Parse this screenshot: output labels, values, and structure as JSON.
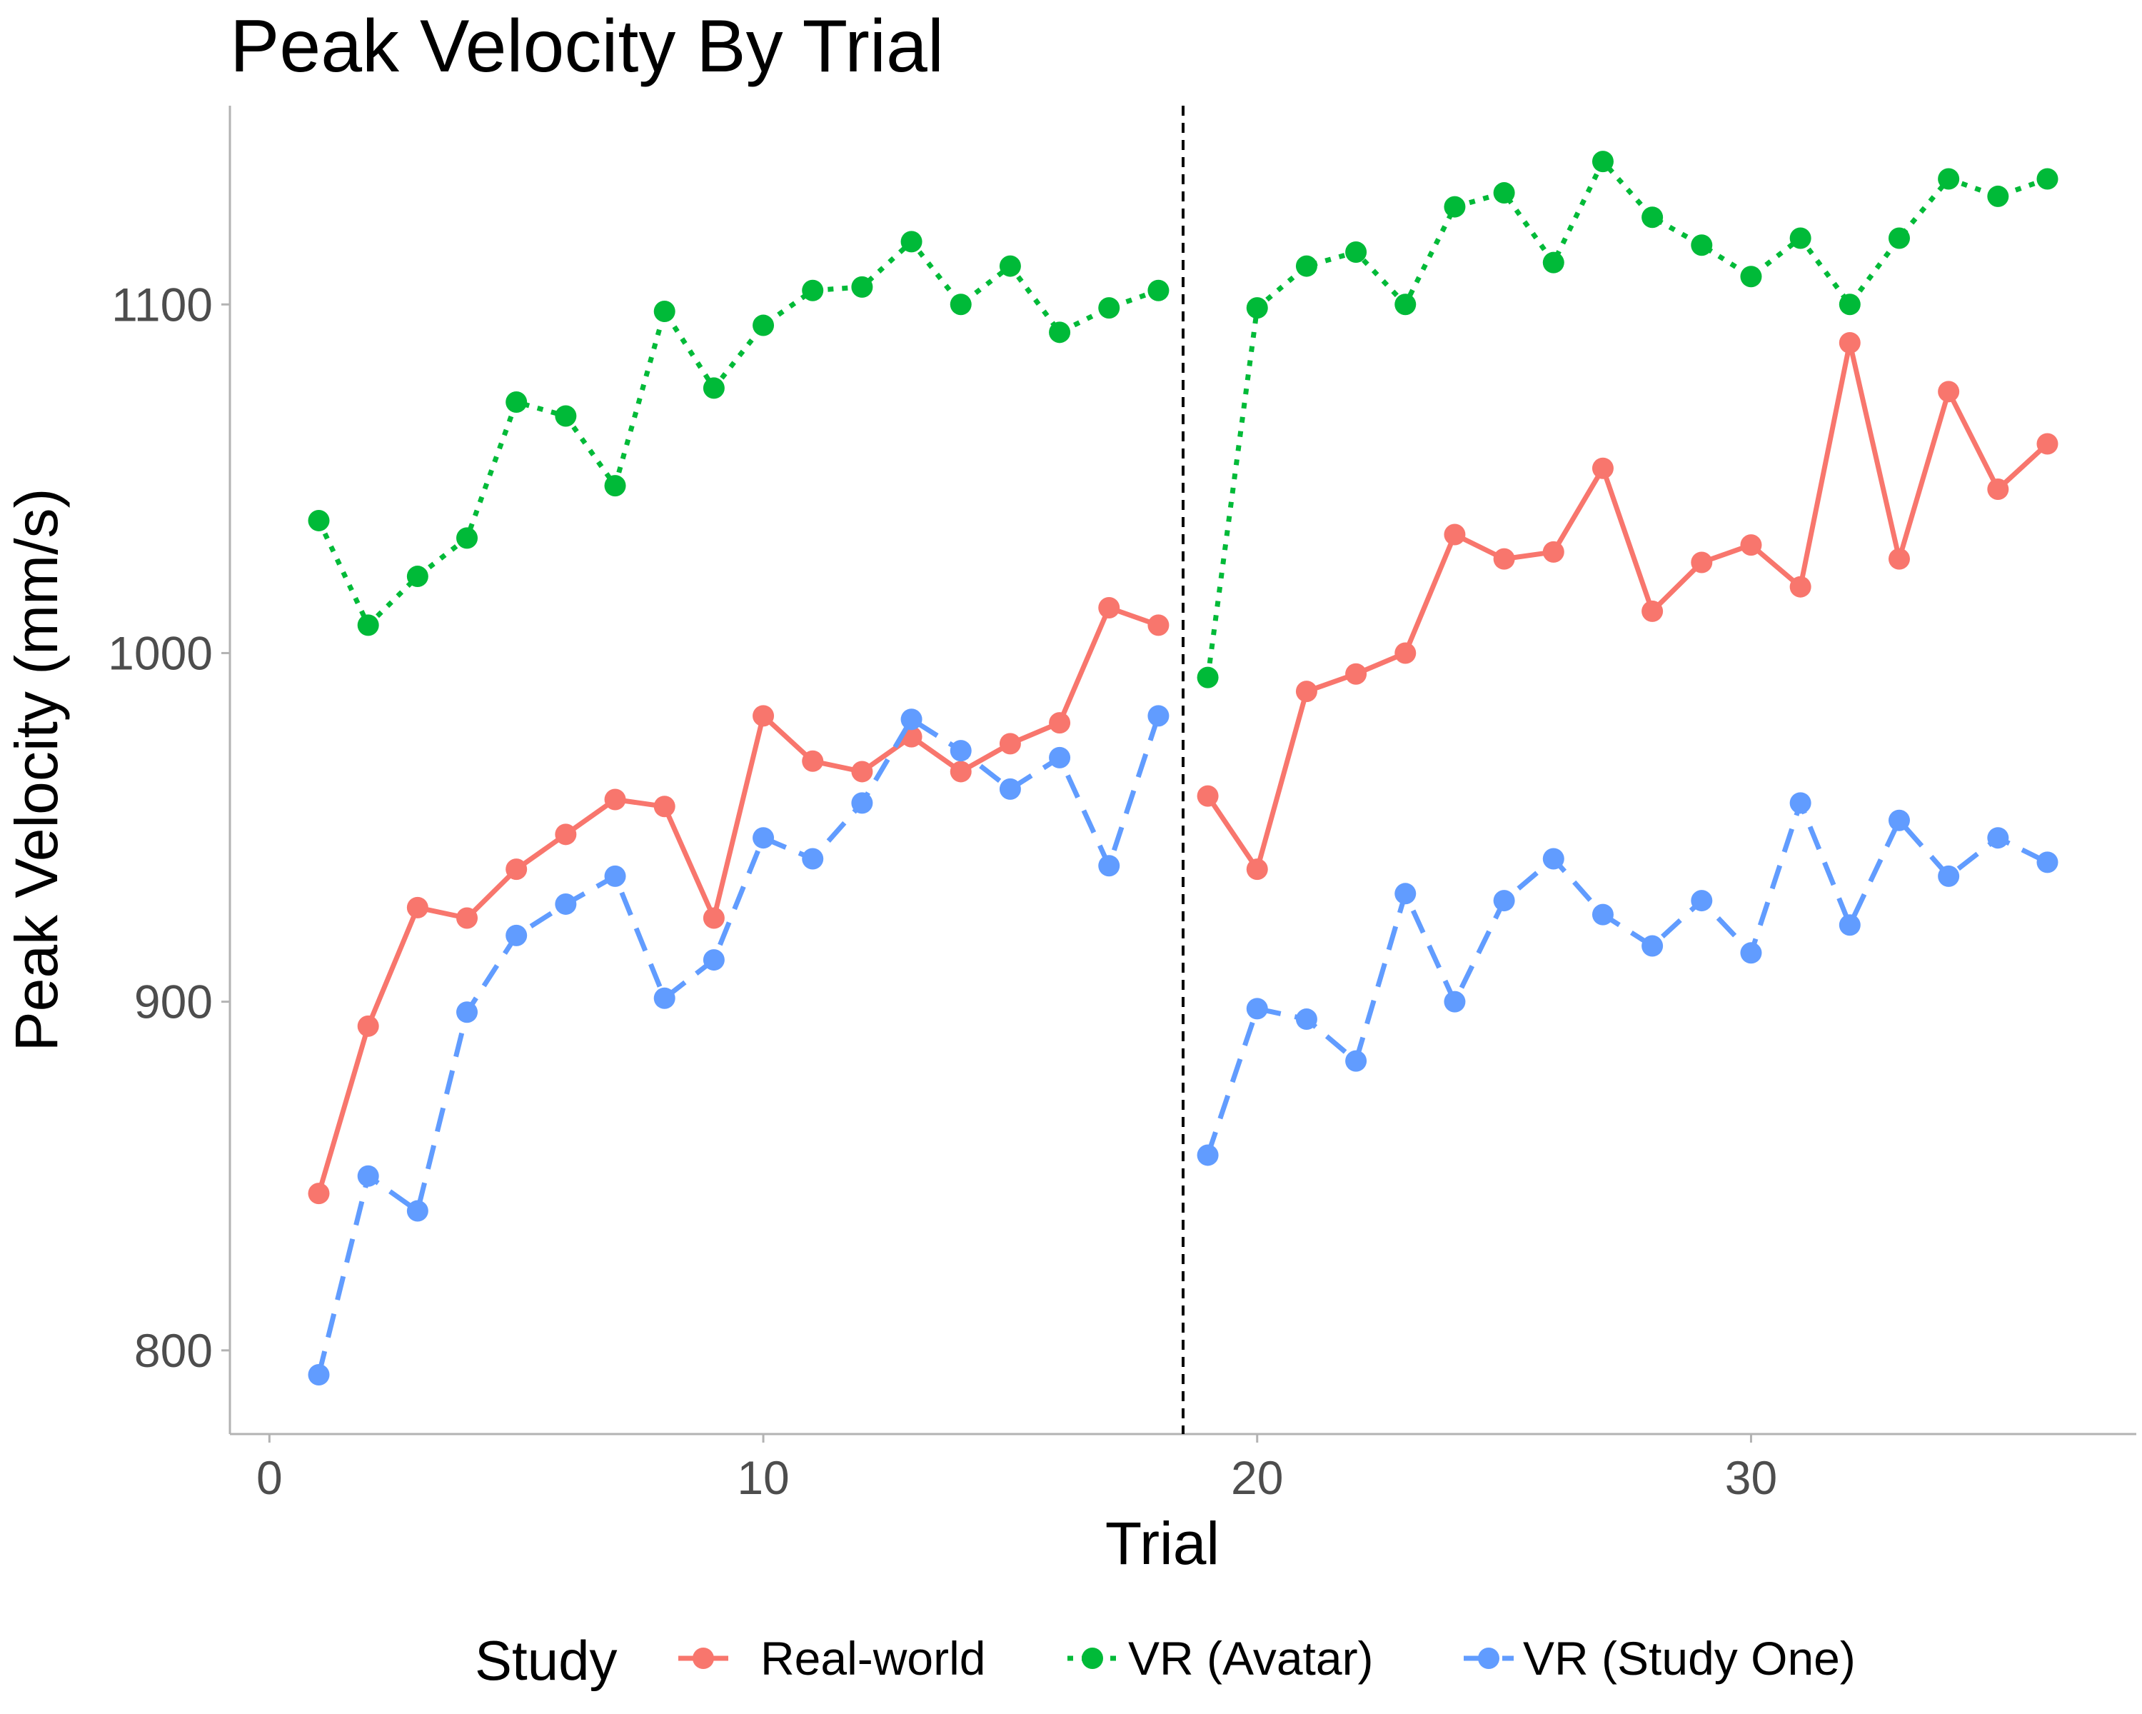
{
  "chart_data": {
    "type": "line",
    "title": "Peak Velocity By Trial",
    "xlabel": "Trial",
    "ylabel": "Peak Velocity (mm/s)",
    "xlim": [
      -0.8,
      37.8
    ],
    "ylim": [
      776,
      1157
    ],
    "x_ticks": [
      0,
      10,
      20,
      30
    ],
    "y_ticks": [
      800,
      900,
      1000,
      1100
    ],
    "x_tick_labels": [
      "0",
      "10",
      "20",
      "30"
    ],
    "y_tick_labels": [
      "800",
      "900",
      "1000",
      "1100"
    ],
    "grid": false,
    "vline": {
      "x": 18.5,
      "style": "dashed",
      "color": "#000000"
    },
    "gap_between": [
      18,
      19
    ],
    "legend": {
      "title": "Study",
      "placement": "bottom"
    },
    "x": [
      1,
      2,
      3,
      4,
      5,
      6,
      7,
      8,
      9,
      10,
      11,
      12,
      13,
      14,
      15,
      16,
      17,
      18,
      19,
      20,
      21,
      22,
      23,
      24,
      25,
      26,
      27,
      28,
      29,
      30,
      31,
      32,
      33,
      34,
      35,
      36
    ],
    "series": [
      {
        "name": "Real-world",
        "color": "#F8766D",
        "dash": "solid",
        "values": [
          845,
          893,
          927,
          924,
          938,
          948,
          958,
          956,
          924,
          982,
          969,
          966,
          976,
          966,
          974,
          980,
          1013,
          1008,
          959,
          938,
          989,
          994,
          1000,
          1034,
          1027,
          1029,
          1053,
          1012,
          1026,
          1031,
          1019,
          1089,
          1027,
          1075,
          1047,
          1060
        ]
      },
      {
        "name": "VR (Avatar)",
        "color": "#00BA38",
        "dash": "dotted",
        "values": [
          1038,
          1008,
          1022,
          1033,
          1072,
          1068,
          1048,
          1098,
          1076,
          1094,
          1104,
          1105,
          1118,
          1100,
          1111,
          1092,
          1099,
          1104,
          993,
          1099,
          1111,
          1115,
          1100,
          1128,
          1132,
          1112,
          1141,
          1125,
          1117,
          1108,
          1119,
          1100,
          1119,
          1136,
          1131,
          1136
        ]
      },
      {
        "name": "VR (Study One)",
        "color": "#619CFF",
        "dash": "dashed",
        "values": [
          793,
          850,
          840,
          897,
          919,
          928,
          936,
          901,
          912,
          947,
          941,
          957,
          981,
          972,
          961,
          970,
          939,
          982,
          856,
          898,
          895,
          883,
          931,
          900,
          929,
          941,
          925,
          916,
          929,
          914,
          957,
          922,
          952,
          936,
          947,
          940
        ]
      }
    ]
  }
}
